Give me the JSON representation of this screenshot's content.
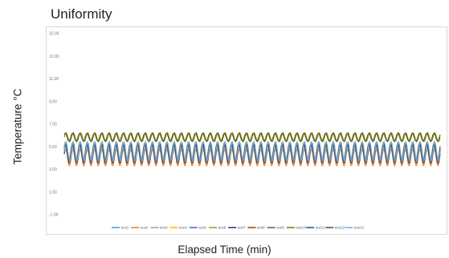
{
  "chart_data": {
    "type": "line",
    "title": "Uniformity",
    "xlabel": "Elapsed Time (min)",
    "ylabel": "Temperature °C",
    "ylim": [
      -1,
      15
    ],
    "yticks": [
      "15.00",
      "13.00",
      "11.00",
      "9.00",
      "7.00",
      "5.00",
      "3.00",
      "1.00",
      "-1.00"
    ],
    "grid": "none",
    "legend_position": "bottom",
    "cycles": 52,
    "series": [
      {
        "name": "test1",
        "color": "#5b9bd5",
        "center": 4.55,
        "amplitude": 0.85
      },
      {
        "name": "test2",
        "color": "#ed7d31",
        "center": 4.05,
        "amplitude": 0.75
      },
      {
        "name": "test3",
        "color": "#a5a5a5",
        "center": 4.6,
        "amplitude": 0.8
      },
      {
        "name": "test4",
        "color": "#ffc000",
        "center": 4.5,
        "amplitude": 0.8
      },
      {
        "name": "test5",
        "color": "#4472c4",
        "center": 4.45,
        "amplitude": 0.8
      },
      {
        "name": "test6",
        "color": "#70ad47",
        "center": 4.5,
        "amplitude": 0.8
      },
      {
        "name": "test7",
        "color": "#264478",
        "center": 4.4,
        "amplitude": 0.8
      },
      {
        "name": "test8",
        "color": "#9e480e",
        "center": 4.3,
        "amplitude": 0.8
      },
      {
        "name": "test9",
        "color": "#636363",
        "center": 4.45,
        "amplitude": 0.8
      },
      {
        "name": "test10",
        "color": "#997300",
        "center": 5.85,
        "amplitude": 0.4
      },
      {
        "name": "test11",
        "color": "#255e91",
        "center": 4.5,
        "amplitude": 0.8
      },
      {
        "name": "test12",
        "color": "#43682b",
        "center": 5.85,
        "amplitude": 0.35
      },
      {
        "name": "test13",
        "color": "#7cafdd",
        "center": 4.6,
        "amplitude": 0.85
      }
    ]
  }
}
